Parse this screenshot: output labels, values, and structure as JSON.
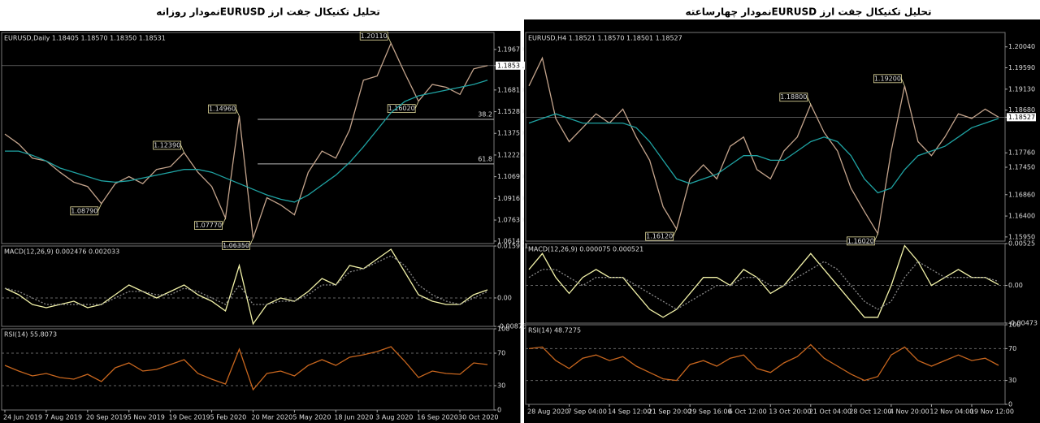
{
  "chart_data": [
    {
      "type": "line",
      "title": "تحلیل تکنیکال جفت ارز  EURUSDنمودار روزانه",
      "subtitle": "EURUSD,Daily 1.18405 1.18570 1.18350 1.18531",
      "ylim": [
        1.0597,
        1.2087
      ],
      "yticks": [
        {
          "value": 1.1967,
          "label": "1.19670"
        },
        1.18531,
        {
          "value": 1.1681,
          "label": "1.16810"
        },
        {
          "value": 1.1528,
          "label": "1.15280"
        },
        {
          "value": 1.1375,
          "label": "1.13750"
        },
        {
          "value": 1.1222,
          "label": "1.12220"
        },
        {
          "value": 1.1069,
          "label": "1.10690"
        },
        {
          "value": 1.0916,
          "label": "1.09160"
        },
        {
          "value": 1.0763,
          "label": "1.07630"
        },
        1.06145
      ],
      "annotations": [
        {
          "value": 1.1474,
          "label": "38.2"
        },
        {
          "value": 1.1159,
          "label": "61.8"
        }
      ],
      "series": [
        {
          "name": "EURUSD",
          "color": "#c4a48c",
          "values": [
            1.137,
            1.13,
            1.12,
            1.118,
            1.11,
            1.103,
            1.1,
            1.0879,
            1.102,
            1.107,
            1.102,
            1.112,
            1.114,
            1.1239,
            1.11,
            1.1,
            1.0777,
            1.1496,
            1.0635,
            1.092,
            1.087,
            1.08,
            1.11,
            1.125,
            1.12,
            1.14,
            1.175,
            1.178,
            1.2011,
            1.18,
            1.1602,
            1.172,
            1.17,
            1.165,
            1.183,
            1.18531
          ],
          "value_labels": [
            null,
            null,
            null,
            null,
            null,
            null,
            null,
            "1.08790",
            null,
            null,
            null,
            null,
            null,
            "1.12390",
            null,
            null,
            "1.07770",
            "1.14960",
            "1.06350",
            null,
            null,
            null,
            null,
            null,
            null,
            null,
            null,
            null,
            "1.20110",
            null,
            "1.16020",
            null,
            null,
            null,
            null,
            null
          ]
        },
        {
          "name": "MA",
          "color": "#1fa3a3",
          "values": [
            1.125,
            1.125,
            1.122,
            1.118,
            1.113,
            1.11,
            1.107,
            1.104,
            1.103,
            1.104,
            1.106,
            1.108,
            1.11,
            1.112,
            1.112,
            1.11,
            1.106,
            1.102,
            1.098,
            1.094,
            1.091,
            1.089,
            1.094,
            1.101,
            1.108,
            1.117,
            1.128,
            1.14,
            1.152,
            1.16,
            1.164,
            1.166,
            1.168,
            1.17,
            1.172,
            1.175
          ]
        }
      ]
    },
    {
      "type": "line",
      "subtitle": "MACD(12,26,9) 0.002476 0.002033",
      "ylim": [
        -0.00876,
        0.015991
      ],
      "yticks": [
        0.015991,
        {
          "value": 0,
          "label": "0.00"
        },
        -0.00876
      ],
      "grid": "interior",
      "series": [
        {
          "name": "MACD",
          "color": "#f2f2a8",
          "values": [
            0.003,
            0.001,
            -0.002,
            -0.003,
            -0.002,
            -0.001,
            -0.003,
            -0.002,
            0.001,
            0.004,
            0.002,
            0.0,
            0.002,
            0.004,
            0.001,
            -0.001,
            -0.004,
            0.01,
            -0.008,
            -0.002,
            0.0,
            -0.001,
            0.002,
            0.006,
            0.004,
            0.01,
            0.009,
            0.012,
            0.015,
            0.008,
            0.001,
            -0.001,
            -0.002,
            -0.002,
            0.001,
            0.0025
          ]
        },
        {
          "name": "Signal",
          "color": "#8a8a8a",
          "dash": "dotted",
          "values": [
            0.003,
            0.002,
            0.0,
            -0.002,
            -0.002,
            -0.002,
            -0.002,
            -0.002,
            0.0,
            0.002,
            0.002,
            0.001,
            0.001,
            0.003,
            0.002,
            0.0,
            -0.002,
            0.004,
            -0.002,
            -0.002,
            -0.001,
            -0.001,
            0.001,
            0.004,
            0.004,
            0.008,
            0.009,
            0.011,
            0.013,
            0.01,
            0.004,
            0.001,
            -0.001,
            -0.002,
            0.0,
            0.002
          ]
        }
      ]
    },
    {
      "type": "line",
      "subtitle": "RSI(14) 55.8073",
      "ylim": [
        0,
        100
      ],
      "yticks": [
        100,
        70,
        30,
        0
      ],
      "grid": "interior",
      "categories": [
        "24 Jun 2019",
        null,
        null,
        "7 Aug 2019",
        null,
        null,
        "20 Sep 2019",
        null,
        null,
        "5 Nov 2019",
        null,
        null,
        "19 Dec 2019",
        null,
        null,
        "5 Feb 2020",
        null,
        null,
        "20 Mar 2020",
        null,
        null,
        "5 May 2020",
        null,
        null,
        "18 Jun 2020",
        null,
        null,
        "3 Aug 2020",
        null,
        null,
        "16 Sep 2020",
        null,
        null,
        "30 Oct 2020",
        null,
        null
      ],
      "series": [
        {
          "name": "RSI",
          "color": "#c8661e",
          "values": [
            55,
            48,
            42,
            45,
            40,
            38,
            44,
            35,
            52,
            58,
            48,
            50,
            56,
            62,
            45,
            38,
            32,
            75,
            25,
            45,
            48,
            42,
            55,
            62,
            55,
            65,
            68,
            72,
            78,
            60,
            40,
            48,
            45,
            44,
            58,
            56
          ]
        }
      ]
    },
    {
      "type": "line",
      "title": "تحلیل تکنیکال جفت ارز  EURUSDنمودار چهارساعته",
      "subtitle": "EURUSD,H4 1.18521 1.18570 1.18501 1.18527",
      "ylim": [
        1.1586,
        1.2035
      ],
      "yticks": [
        {
          "value": 1.2004,
          "label": "1.20040"
        },
        {
          "value": 1.1959,
          "label": "1.19590"
        },
        {
          "value": 1.1913,
          "label": "1.19130"
        },
        {
          "value": 1.1868,
          "label": "1.18680"
        },
        1.18527,
        {
          "value": 1.1776,
          "label": "1.17760"
        },
        {
          "value": 1.1745,
          "label": "1.17450"
        },
        {
          "value": 1.1686,
          "label": "1.16860"
        },
        {
          "value": 1.164,
          "label": "1.16400"
        },
        {
          "value": 1.1595,
          "label": "1.15950"
        }
      ],
      "series": [
        {
          "name": "EURUSD",
          "color": "#c4a48c",
          "values": [
            1.192,
            1.198,
            1.185,
            1.18,
            1.183,
            1.186,
            1.184,
            1.187,
            1.181,
            1.176,
            1.166,
            1.1612,
            1.172,
            1.175,
            1.172,
            1.179,
            1.181,
            1.174,
            1.172,
            1.178,
            1.181,
            1.188,
            1.182,
            1.178,
            1.17,
            1.165,
            1.1602,
            1.178,
            1.192,
            1.18,
            1.177,
            1.181,
            1.186,
            1.185,
            1.187,
            1.18527
          ],
          "value_labels": [
            null,
            null,
            null,
            null,
            null,
            null,
            null,
            null,
            null,
            null,
            null,
            "1.16120",
            null,
            null,
            null,
            null,
            null,
            null,
            null,
            null,
            null,
            "1.18800",
            null,
            null,
            null,
            null,
            "1.16020",
            null,
            "1.19200",
            null,
            null,
            null,
            null,
            null,
            null,
            null
          ]
        },
        {
          "name": "MA",
          "color": "#1fa3a3",
          "values": [
            1.184,
            1.185,
            1.186,
            1.185,
            1.184,
            1.184,
            1.184,
            1.184,
            1.183,
            1.18,
            1.176,
            1.172,
            1.171,
            1.172,
            1.173,
            1.175,
            1.177,
            1.177,
            1.176,
            1.176,
            1.178,
            1.18,
            1.181,
            1.18,
            1.177,
            1.172,
            1.169,
            1.17,
            1.174,
            1.177,
            1.178,
            1.179,
            1.181,
            1.183,
            1.184,
            1.185
          ]
        }
      ]
    },
    {
      "type": "line",
      "subtitle": "MACD(12,26,9) 0.000075 0.000521",
      "ylim": [
        -0.00473,
        0.00525
      ],
      "yticks": [
        0.00525,
        {
          "value": 0,
          "label": "0.00"
        },
        -0.00473
      ],
      "grid": "interior",
      "series": [
        {
          "name": "MACD",
          "color": "#f2f2a8",
          "values": [
            0.002,
            0.004,
            0.001,
            -0.001,
            0.001,
            0.002,
            0.001,
            0.001,
            -0.001,
            -0.003,
            -0.004,
            -0.003,
            -0.001,
            0.001,
            0.001,
            0.0,
            0.002,
            0.001,
            -0.001,
            0.0,
            0.002,
            0.004,
            0.002,
            0.0,
            -0.002,
            -0.004,
            -0.004,
            0.0,
            0.005,
            0.003,
            0.0,
            0.001,
            0.002,
            0.001,
            0.001,
            0.0001
          ]
        },
        {
          "name": "Signal",
          "color": "#8a8a8a",
          "dash": "dotted",
          "values": [
            0.001,
            0.002,
            0.002,
            0.001,
            0.0,
            0.001,
            0.001,
            0.001,
            0.0,
            -0.001,
            -0.002,
            -0.003,
            -0.002,
            -0.001,
            0.0,
            0.0,
            0.001,
            0.001,
            0.0,
            0.0,
            0.001,
            0.002,
            0.003,
            0.002,
            0.0,
            -0.002,
            -0.003,
            -0.002,
            0.001,
            0.003,
            0.002,
            0.001,
            0.001,
            0.001,
            0.001,
            0.0005
          ]
        }
      ]
    },
    {
      "type": "line",
      "subtitle": "RSI(14) 48.7275",
      "ylim": [
        0,
        100
      ],
      "yticks": [
        100,
        70,
        30,
        0
      ],
      "grid": "interior",
      "categories": [
        "28 Aug 2020",
        null,
        null,
        "7 Sep 04:00",
        null,
        null,
        "14 Sep 12:00",
        null,
        null,
        "21 Sep 20:00",
        null,
        null,
        "29 Sep 16:00",
        null,
        null,
        "6 Oct 12:00",
        null,
        null,
        "13 Oct 20:00",
        null,
        null,
        "21 Oct 04:00",
        null,
        null,
        "28 Oct 12:00",
        null,
        null,
        "4 Nov 20:00",
        null,
        null,
        "12 Nov 04:00",
        null,
        null,
        "19 Nov 12:00",
        null,
        null
      ],
      "series": [
        {
          "name": "RSI",
          "color": "#c8661e",
          "values": [
            70,
            72,
            55,
            45,
            58,
            62,
            55,
            60,
            48,
            40,
            32,
            30,
            50,
            55,
            48,
            58,
            62,
            45,
            40,
            52,
            60,
            75,
            58,
            48,
            38,
            30,
            35,
            62,
            72,
            55,
            48,
            55,
            62,
            55,
            58,
            49
          ]
        }
      ]
    }
  ]
}
